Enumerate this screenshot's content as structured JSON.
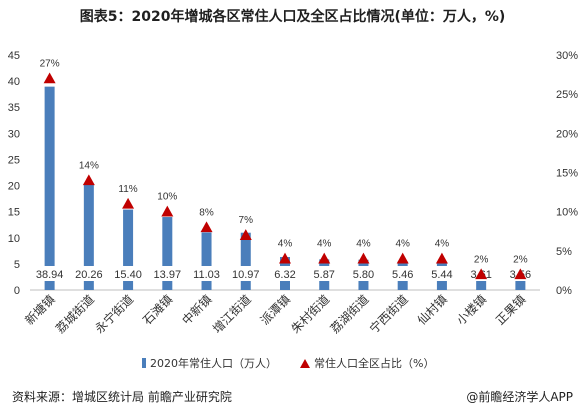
{
  "title": "图表5：2020年增城各区常住人口及全区占比情况(单位：万人，%)",
  "chart_data": {
    "type": "bar",
    "categories": [
      "新塘镇",
      "荔城街道",
      "永宁街道",
      "石滩镇",
      "中新镇",
      "增江街道",
      "派潭镇",
      "朱村街道",
      "荔湖街道",
      "宁西街道",
      "仙村镇",
      "小楼镇",
      "正果镇"
    ],
    "series": [
      {
        "name": "2020年常住人口（万人）",
        "type": "bar",
        "axis": "left",
        "color": "#4a7ebb",
        "values": [
          38.94,
          20.26,
          15.4,
          13.97,
          11.03,
          10.97,
          6.32,
          5.87,
          5.8,
          5.46,
          5.44,
          3.61,
          3.56
        ],
        "value_labels": [
          "38.94",
          "20.26",
          "15.40",
          "13.97",
          "11.03",
          "10.97",
          "6.32",
          "5.87",
          "5.80",
          "5.46",
          "5.44",
          "3.61",
          "3.56"
        ]
      },
      {
        "name": "常住人口全区占比（%）",
        "type": "marker",
        "axis": "right",
        "color": "#c00000",
        "values": [
          27,
          14,
          11,
          10,
          8,
          7,
          4,
          4,
          4,
          4,
          4,
          2,
          2
        ],
        "value_labels": [
          "27%",
          "14%",
          "11%",
          "10%",
          "8%",
          "7%",
          "4%",
          "4%",
          "4%",
          "4%",
          "4%",
          "2%",
          "2%"
        ]
      }
    ],
    "y_left": {
      "min": 0,
      "max": 45,
      "step": 5,
      "ticks": [
        "0",
        "5",
        "10",
        "15",
        "20",
        "25",
        "30",
        "35",
        "40",
        "45"
      ]
    },
    "y_right": {
      "min": 0,
      "max": 30,
      "step": 5,
      "ticks": [
        "0%",
        "5%",
        "10%",
        "15%",
        "20%",
        "25%",
        "30%"
      ]
    },
    "grid": false,
    "legend_position": "bottom"
  },
  "legend": {
    "bar_label": "2020年常住人口（万人）",
    "marker_label": "常住人口全区占比（%）"
  },
  "footer": {
    "source": "资料来源：增城区统计局 前瞻产业研究院",
    "credit": "@前瞻经济学人APP"
  }
}
